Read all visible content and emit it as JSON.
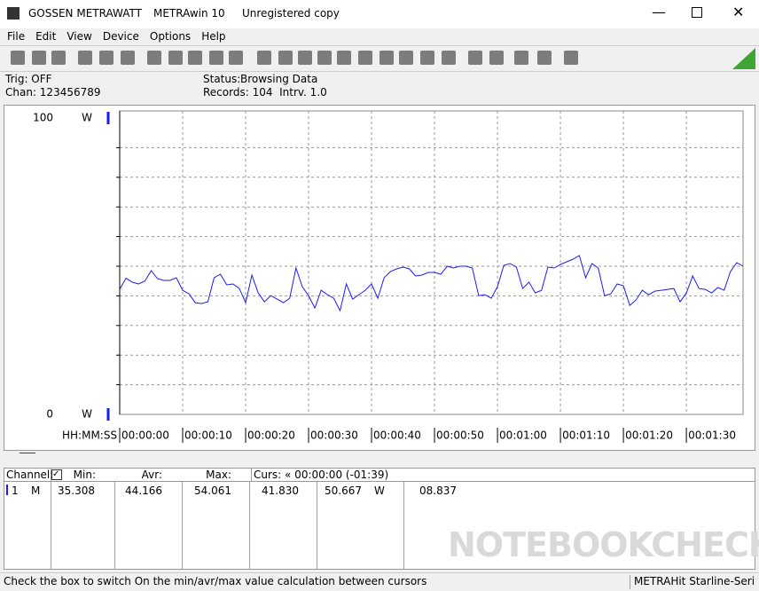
{
  "window": {
    "title": "GOSSEN METRAWATT",
    "app": "METRAwin 10",
    "license": "Unregistered copy"
  },
  "menu": [
    "File",
    "Edit",
    "View",
    "Device",
    "Options",
    "Help"
  ],
  "info": {
    "trig": "Trig: OFF",
    "chan": "Chan: 123456789",
    "status_label": "Status:",
    "status": "Browsing Data",
    "records": "Records: 104  Intrv. 1.0"
  },
  "chart_data": {
    "type": "line",
    "x_label": "HH:MM:SS",
    "y_unit": "W",
    "x": [
      0,
      1,
      2,
      3,
      4,
      5,
      6,
      7,
      8,
      9,
      10,
      11,
      12,
      13,
      14,
      15,
      16,
      17,
      18,
      19,
      20,
      21,
      22,
      23,
      24,
      25,
      26,
      27,
      28,
      29,
      30,
      31,
      32,
      33,
      34,
      35,
      36,
      37,
      38,
      39,
      40,
      41,
      42,
      43,
      44,
      45,
      46,
      47,
      48,
      49,
      50,
      51,
      52,
      53,
      54,
      55,
      56,
      57,
      58,
      59,
      60,
      61,
      62,
      63,
      64,
      65,
      66,
      67,
      68,
      69,
      70,
      71,
      72,
      73,
      74,
      75,
      76,
      77,
      78,
      79,
      80,
      81,
      82,
      83,
      84,
      85,
      86,
      87,
      88,
      89,
      90,
      91,
      92,
      93,
      94,
      95,
      96,
      97,
      98,
      99
    ],
    "series": [
      {
        "name": "1",
        "color": "#1a1aff",
        "values": [
          42.2,
          46,
          44.6,
          44,
          45,
          48.5,
          45.8,
          45.2,
          45.2,
          46.1,
          41.9,
          40.7,
          37.7,
          37.4,
          38,
          46.1,
          47.3,
          43.7,
          44,
          42.5,
          37.7,
          47,
          41,
          38,
          40.1,
          38.9,
          37.7,
          39.2,
          49.4,
          43.1,
          40.1,
          35.9,
          41.9,
          40.4,
          39.2,
          35,
          44,
          38.9,
          40.4,
          41.9,
          44,
          39.2,
          46.1,
          48.2,
          49.1,
          49.7,
          49.1,
          46.7,
          47,
          47.9,
          47.9,
          47.3,
          50,
          49.4,
          50,
          50,
          49.4,
          40.1,
          40.4,
          39.2,
          43.1,
          50.3,
          50.9,
          49.7,
          42.5,
          44.6,
          41,
          41.9,
          49.7,
          49.4,
          50.6,
          51.5,
          52.4,
          53.6,
          46.1,
          50.9,
          49.4,
          40.1,
          40.7,
          44,
          43.4,
          36.8,
          38.6,
          41.9,
          40.4,
          41.6,
          41.9,
          42.2,
          42.5,
          38,
          41,
          46.7,
          42.5,
          42.2,
          41,
          42.8,
          41.9,
          48.2,
          51.2,
          50
        ]
      }
    ],
    "xlim": [
      0,
      99
    ],
    "xticks": [
      {
        "value": 0,
        "label": "00:00:00"
      },
      {
        "value": 10,
        "label": "00:00:10"
      },
      {
        "value": 20,
        "label": "00:00:20"
      },
      {
        "value": 30,
        "label": "00:00:30"
      },
      {
        "value": 40,
        "label": "00:00:40"
      },
      {
        "value": 50,
        "label": "00:00:50"
      },
      {
        "value": 60,
        "label": "00:01:00"
      },
      {
        "value": 70,
        "label": "00:01:10"
      },
      {
        "value": 80,
        "label": "00:01:20"
      },
      {
        "value": 90,
        "label": "00:01:30"
      }
    ],
    "ylim": [
      0,
      100
    ],
    "yticks": [
      0,
      100
    ],
    "minor_yticks": [
      10,
      20,
      30,
      40,
      50,
      60,
      70,
      80,
      90
    ],
    "grid": true
  },
  "table": {
    "header": [
      "Channel:",
      "Min:",
      "Avr:",
      "Max:",
      "Curs: « 00:00:00 (-01:39)"
    ],
    "rows": [
      [
        "1",
        "M",
        "35.308",
        "44.166",
        "54.061",
        "41.830",
        "50.667",
        "W",
        "08.837"
      ]
    ]
  },
  "watermark": "NOTEBOOKCHECK",
  "statusbar": [
    "Check the box to switch On the min/avr/max value calculation between cursors",
    "METRAHit Starline-Seri"
  ]
}
